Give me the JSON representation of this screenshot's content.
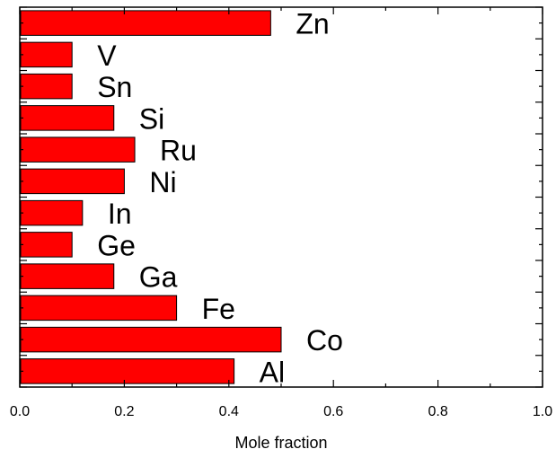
{
  "chart_data": {
    "type": "bar",
    "orientation": "horizontal",
    "categories": [
      "Zn",
      "V",
      "Sn",
      "Si",
      "Ru",
      "Ni",
      "In",
      "Ge",
      "Ga",
      "Fe",
      "Co",
      "Al"
    ],
    "values": [
      0.48,
      0.1,
      0.1,
      0.18,
      0.22,
      0.2,
      0.12,
      0.1,
      0.18,
      0.3,
      0.5,
      0.41
    ],
    "xlabel": "Mole fraction",
    "ylabel": "",
    "xlim": [
      0,
      1.0
    ],
    "xticks": [
      "0.0",
      "0.2",
      "0.4",
      "0.6",
      "0.8",
      "1.0"
    ],
    "grid": false,
    "bar_color": "#ff0000",
    "bar_edge_color": "#000000"
  }
}
